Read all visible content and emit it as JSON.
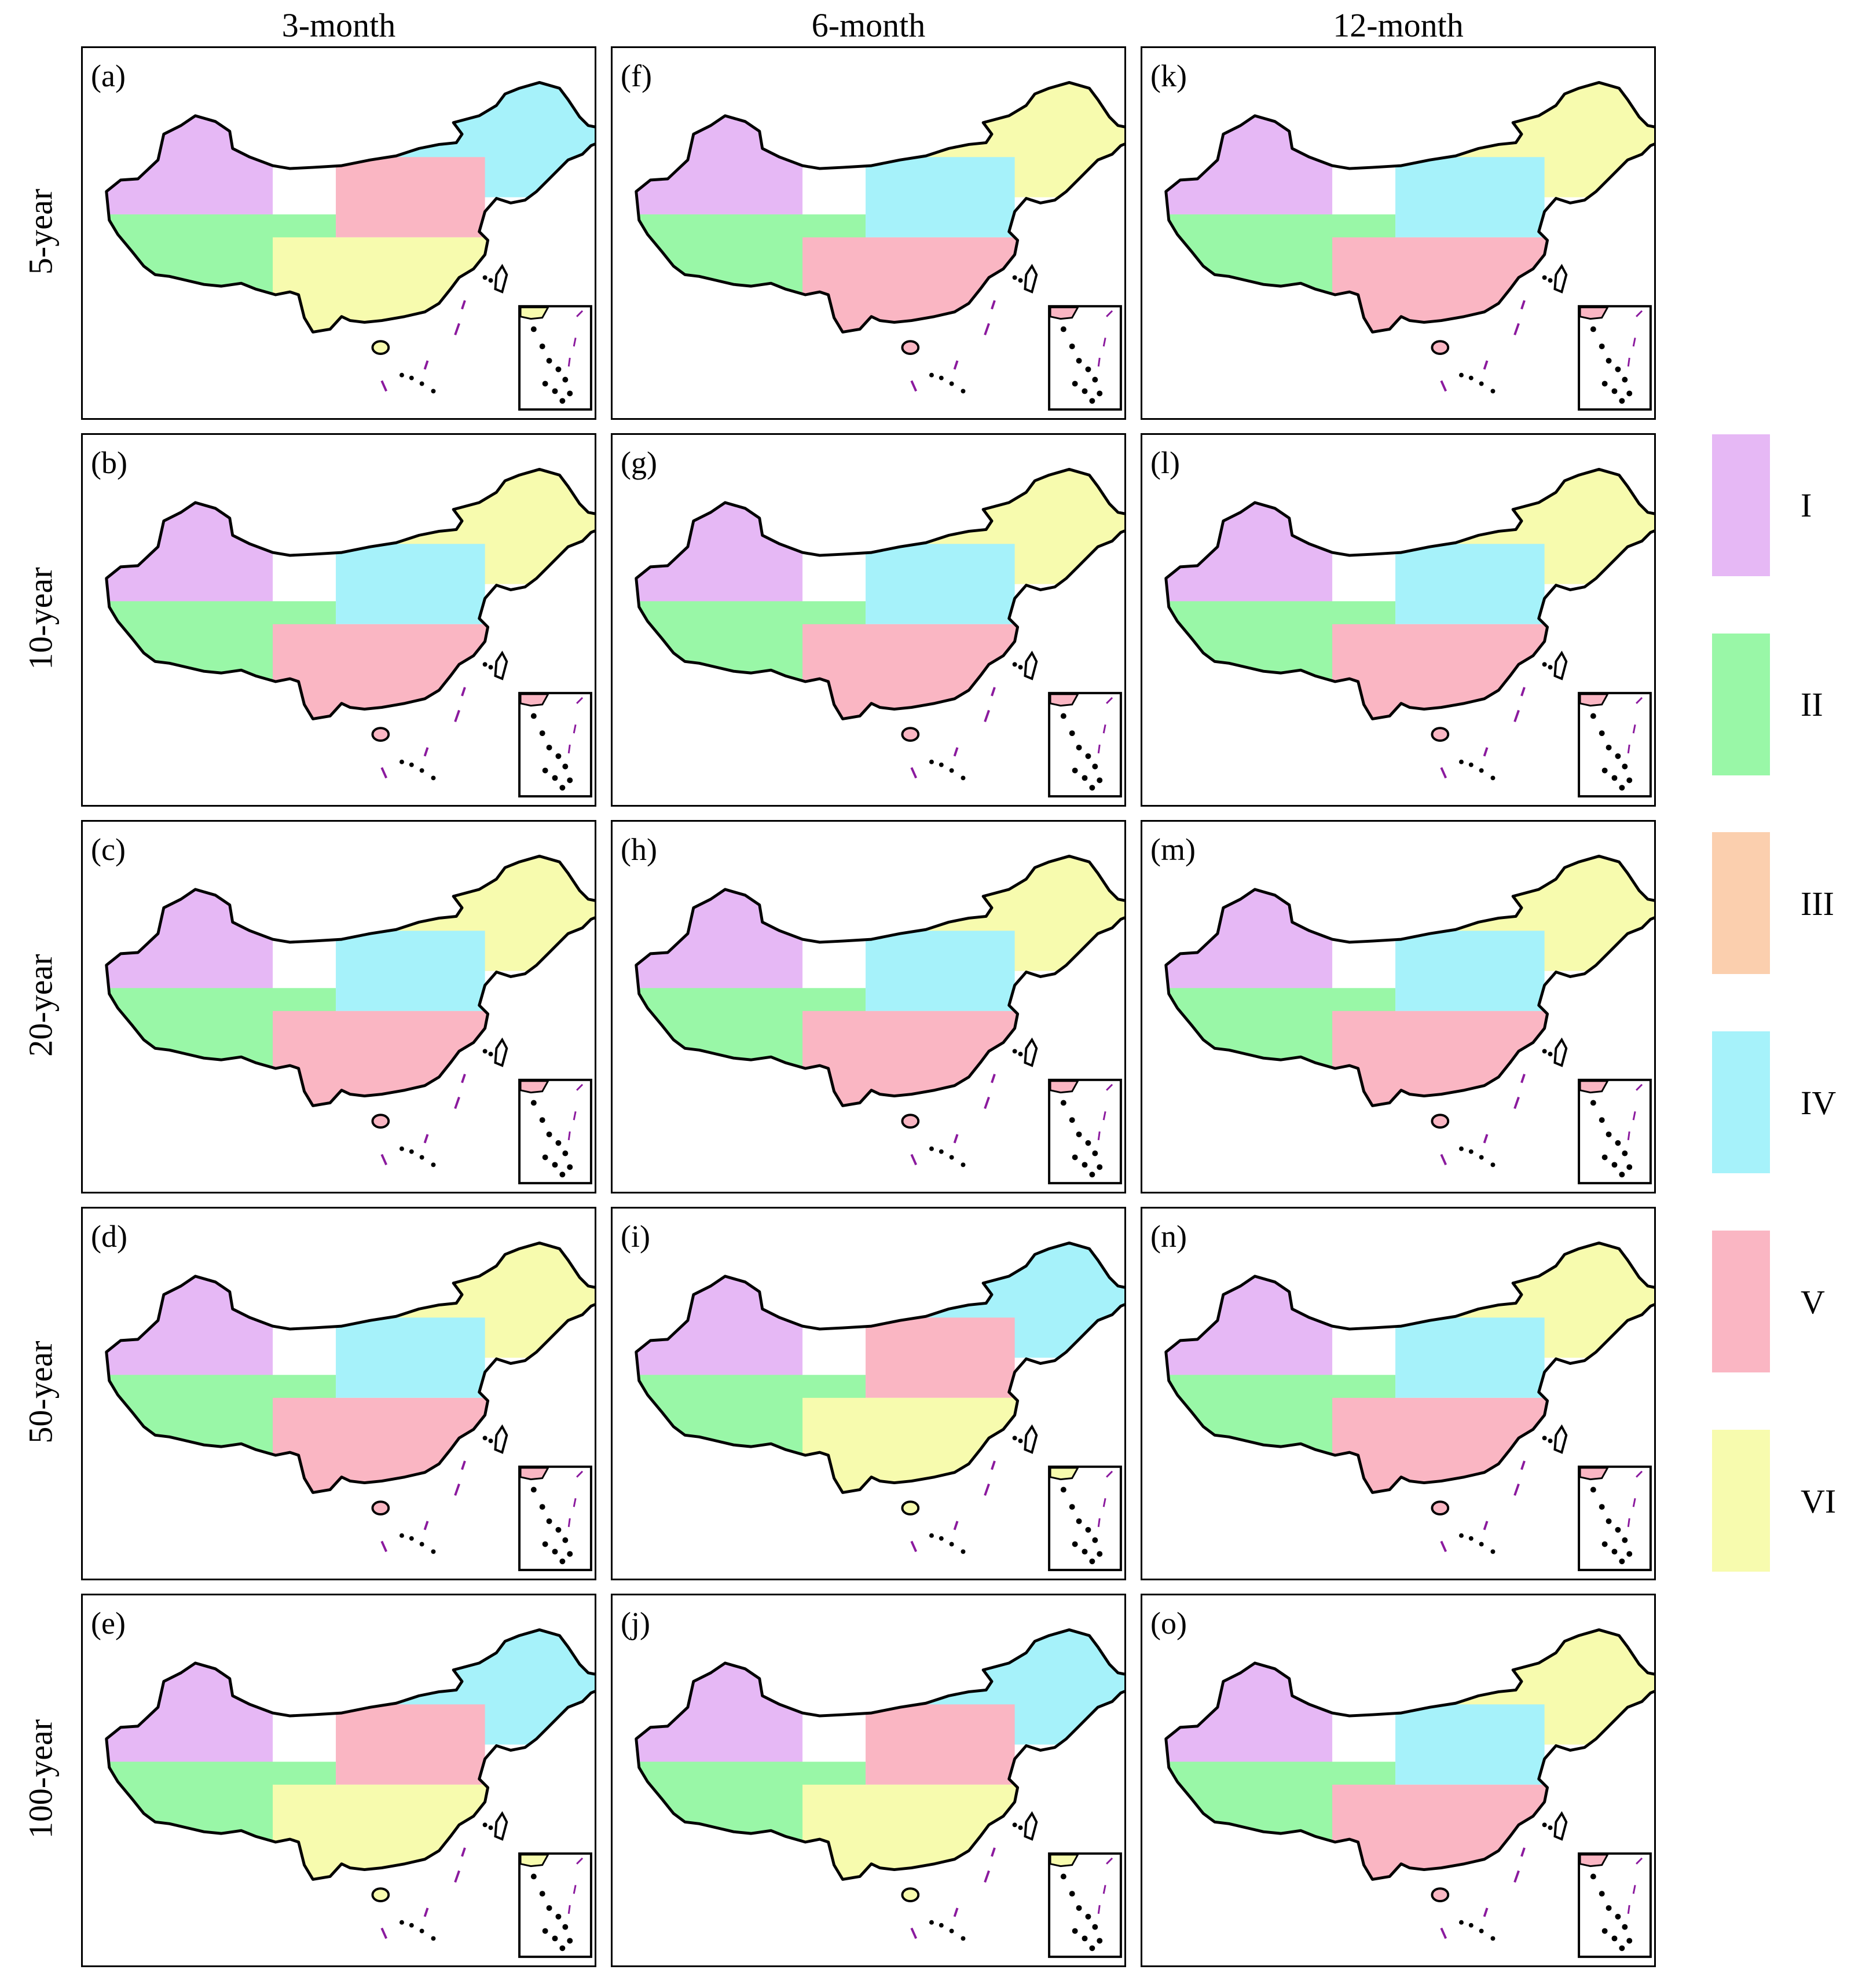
{
  "columns": [
    "3-month",
    "6-month",
    "12-month"
  ],
  "rows": [
    "5-year",
    "10-year",
    "20-year",
    "50-year",
    "100-year"
  ],
  "legend": [
    {
      "label": "I",
      "color": "#E6B8F5"
    },
    {
      "label": "II",
      "color": "#99F7A7"
    },
    {
      "label": "III",
      "color": "#FBCFAE"
    },
    {
      "label": "IV",
      "color": "#A6F2FA"
    },
    {
      "label": "V",
      "color": "#FAB6C3"
    },
    {
      "label": "VI",
      "color": "#F7FBAE"
    }
  ],
  "panels": [
    {
      "label": "(a)",
      "row": "5-year",
      "column": "3-month",
      "regions": [
        "I",
        "III",
        "IV",
        "II",
        "V",
        "VI"
      ]
    },
    {
      "label": "(b)",
      "row": "10-year",
      "column": "3-month",
      "regions": [
        "I",
        "III",
        "VI",
        "II",
        "IV",
        "V"
      ]
    },
    {
      "label": "(c)",
      "row": "20-year",
      "column": "3-month",
      "regions": [
        "I",
        "III",
        "VI",
        "II",
        "IV",
        "V"
      ]
    },
    {
      "label": "(d)",
      "row": "50-year",
      "column": "3-month",
      "regions": [
        "I",
        "III",
        "VI",
        "II",
        "IV",
        "V"
      ]
    },
    {
      "label": "(e)",
      "row": "100-year",
      "column": "3-month",
      "regions": [
        "I",
        "III",
        "IV",
        "II",
        "V",
        "VI"
      ]
    },
    {
      "label": "(f)",
      "row": "5-year",
      "column": "6-month",
      "regions": [
        "I",
        "III",
        "VI",
        "II",
        "IV",
        "V"
      ]
    },
    {
      "label": "(g)",
      "row": "10-year",
      "column": "6-month",
      "regions": [
        "I",
        "III",
        "VI",
        "II",
        "IV",
        "V"
      ]
    },
    {
      "label": "(h)",
      "row": "20-year",
      "column": "6-month",
      "regions": [
        "I",
        "III",
        "VI",
        "II",
        "IV",
        "V"
      ]
    },
    {
      "label": "(i)",
      "row": "50-year",
      "column": "6-month",
      "regions": [
        "I",
        "III",
        "IV",
        "II",
        "V",
        "VI"
      ]
    },
    {
      "label": "(j)",
      "row": "100-year",
      "column": "6-month",
      "regions": [
        "I",
        "III",
        "IV",
        "II",
        "V",
        "VI"
      ]
    },
    {
      "label": "(k)",
      "row": "5-year",
      "column": "12-month",
      "regions": [
        "I",
        "III",
        "VI",
        "II",
        "IV",
        "V"
      ]
    },
    {
      "label": "(l)",
      "row": "10-year",
      "column": "12-month",
      "regions": [
        "I",
        "VI",
        "VI",
        "II",
        "IV",
        "V"
      ]
    },
    {
      "label": "(m)",
      "row": "20-year",
      "column": "12-month",
      "regions": [
        "I",
        "III",
        "VI",
        "II",
        "IV",
        "V"
      ]
    },
    {
      "label": "(n)",
      "row": "50-year",
      "column": "12-month",
      "regions": [
        "I",
        "III",
        "VI",
        "II",
        "IV",
        "V"
      ]
    },
    {
      "label": "(o)",
      "row": "100-year",
      "column": "12-month",
      "regions": [
        "I",
        "VI",
        "VI",
        "II",
        "IV",
        "V"
      ]
    }
  ]
}
